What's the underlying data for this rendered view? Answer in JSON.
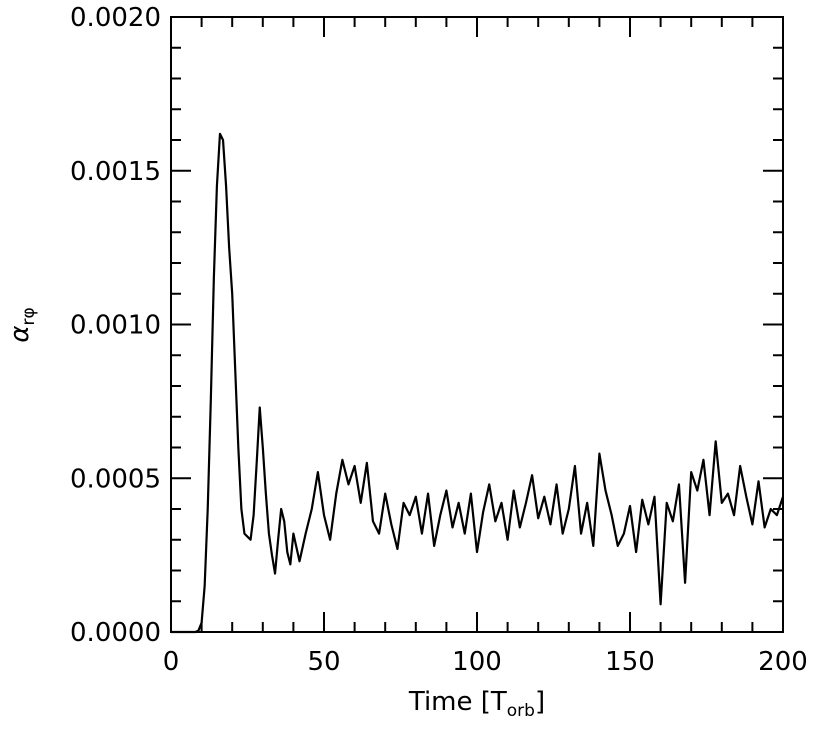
{
  "chart_data": {
    "type": "line",
    "xlabel": [
      "Time [T",
      "orb",
      "]"
    ],
    "ylabel": [
      "α",
      "rφ"
    ],
    "color": "#000000",
    "xlim": [
      0,
      200
    ],
    "xticks": [
      0,
      50,
      100,
      150,
      200
    ],
    "ylim": [
      0,
      0.002
    ],
    "yticks": [
      {
        "value": 0,
        "label": "0.0000"
      },
      0.0005,
      {
        "value": 0.001,
        "label": "0.0010"
      },
      0.0015,
      {
        "value": 0.002,
        "label": "0.0020"
      }
    ],
    "x": [
      0,
      2,
      4,
      6,
      8,
      9,
      10,
      11,
      12,
      13,
      14,
      15,
      16,
      17,
      18,
      19,
      20,
      21,
      22,
      23,
      24,
      25,
      26,
      27,
      28,
      29,
      30,
      31,
      32,
      33,
      34,
      35,
      36,
      37,
      38,
      39,
      40,
      42,
      44,
      46,
      48,
      50,
      52,
      54,
      56,
      58,
      60,
      62,
      64,
      66,
      68,
      70,
      72,
      74,
      76,
      78,
      80,
      82,
      84,
      86,
      88,
      90,
      92,
      94,
      96,
      98,
      100,
      102,
      104,
      106,
      108,
      110,
      112,
      114,
      116,
      118,
      120,
      122,
      124,
      126,
      128,
      130,
      132,
      134,
      136,
      138,
      140,
      142,
      144,
      146,
      148,
      150,
      152,
      154,
      156,
      158,
      160,
      162,
      164,
      166,
      168,
      170,
      172,
      174,
      176,
      178,
      180,
      182,
      184,
      186,
      188,
      190,
      192,
      194,
      196,
      198,
      200
    ],
    "values": [
      0,
      0,
      0,
      0,
      0,
      5e-06,
      3e-05,
      0.00015,
      0.0004,
      0.00075,
      0.00115,
      0.00145,
      0.00162,
      0.0016,
      0.00145,
      0.00125,
      0.0011,
      0.00085,
      0.0006,
      0.0004,
      0.00032,
      0.00031,
      0.0003,
      0.00038,
      0.00055,
      0.00073,
      0.0006,
      0.00045,
      0.00032,
      0.00025,
      0.00019,
      0.0003,
      0.0004,
      0.00036,
      0.00026,
      0.00022,
      0.00032,
      0.00023,
      0.00032,
      0.0004,
      0.00052,
      0.00038,
      0.0003,
      0.00045,
      0.00056,
      0.00048,
      0.00054,
      0.00042,
      0.00055,
      0.00036,
      0.00032,
      0.00045,
      0.00035,
      0.00027,
      0.00042,
      0.00038,
      0.00044,
      0.00032,
      0.00045,
      0.00028,
      0.00038,
      0.00046,
      0.00034,
      0.00042,
      0.00032,
      0.00045,
      0.00026,
      0.00039,
      0.00048,
      0.00036,
      0.00042,
      0.0003,
      0.00046,
      0.00034,
      0.00042,
      0.00051,
      0.00037,
      0.00044,
      0.00035,
      0.00048,
      0.00032,
      0.0004,
      0.00054,
      0.00032,
      0.00042,
      0.00028,
      0.00058,
      0.00046,
      0.00038,
      0.00028,
      0.00032,
      0.00041,
      0.00026,
      0.00043,
      0.00035,
      0.00044,
      9e-05,
      0.00042,
      0.00036,
      0.00048,
      0.00016,
      0.00052,
      0.00046,
      0.00056,
      0.00038,
      0.00062,
      0.00042,
      0.00045,
      0.00038,
      0.00054,
      0.00044,
      0.00035,
      0.00049,
      0.00034,
      0.0004,
      0.00038,
      0.00044
    ]
  }
}
